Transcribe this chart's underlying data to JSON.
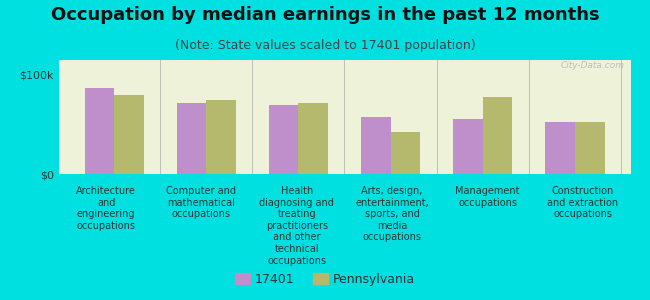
{
  "title": "Occupation by median earnings in the past 12 months",
  "subtitle": "(Note: State values scaled to 17401 population)",
  "background_color": "#00e0e0",
  "plot_bg_color": "#eef2d8",
  "categories": [
    "Architecture\nand\nengineering\noccupations",
    "Computer and\nmathematical\noccupations",
    "Health\ndiagnosing and\ntreating\npractitioners\nand other\ntechnical\noccupations",
    "Arts, design,\nentertainment,\nsports, and\nmedia\noccupations",
    "Management\noccupations",
    "Construction\nand extraction\noccupations"
  ],
  "series": [
    {
      "label": "17401",
      "color": "#bf8fcc",
      "values": [
        87000,
        72000,
        70000,
        57000,
        55000,
        52000
      ]
    },
    {
      "label": "Pennsylvania",
      "color": "#b5b96e",
      "values": [
        80000,
        75000,
        72000,
        42000,
        78000,
        52000
      ]
    }
  ],
  "ylim": [
    0,
    115000
  ],
  "yticks": [
    0,
    100000
  ],
  "yticklabels": [
    "$0",
    "$100k"
  ],
  "watermark": "City-Data.com",
  "bar_width": 0.32,
  "title_fontsize": 13,
  "subtitle_fontsize": 9,
  "tick_fontsize": 8,
  "legend_fontsize": 9,
  "xlabel_fontsize": 7
}
